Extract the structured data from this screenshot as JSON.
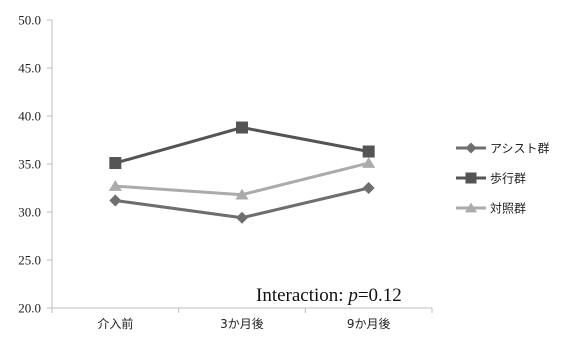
{
  "chart_data": {
    "type": "line",
    "categories": [
      "介入前",
      "3か月後",
      "9か月後"
    ],
    "y_tick_labels": [
      "20.0",
      "25.0",
      "30.0",
      "35.0",
      "40.0",
      "45.0",
      "50.0"
    ],
    "ylim": [
      20,
      50
    ],
    "grid": false,
    "legend_placement": "right",
    "series": [
      {
        "name": "アシスト群",
        "values": [
          31.2,
          29.4,
          32.5
        ],
        "color": "#6e6e6e",
        "marker": "diamond"
      },
      {
        "name": "歩行群",
        "values": [
          35.1,
          38.8,
          36.3
        ],
        "color": "#545454",
        "marker": "square"
      },
      {
        "name": "対照群",
        "values": [
          32.7,
          31.8,
          35.1
        ],
        "color": "#ababab",
        "marker": "triangle"
      }
    ],
    "annotation": {
      "prefix": "Interaction: ",
      "variable": "p",
      "suffix": "=0.12"
    }
  }
}
